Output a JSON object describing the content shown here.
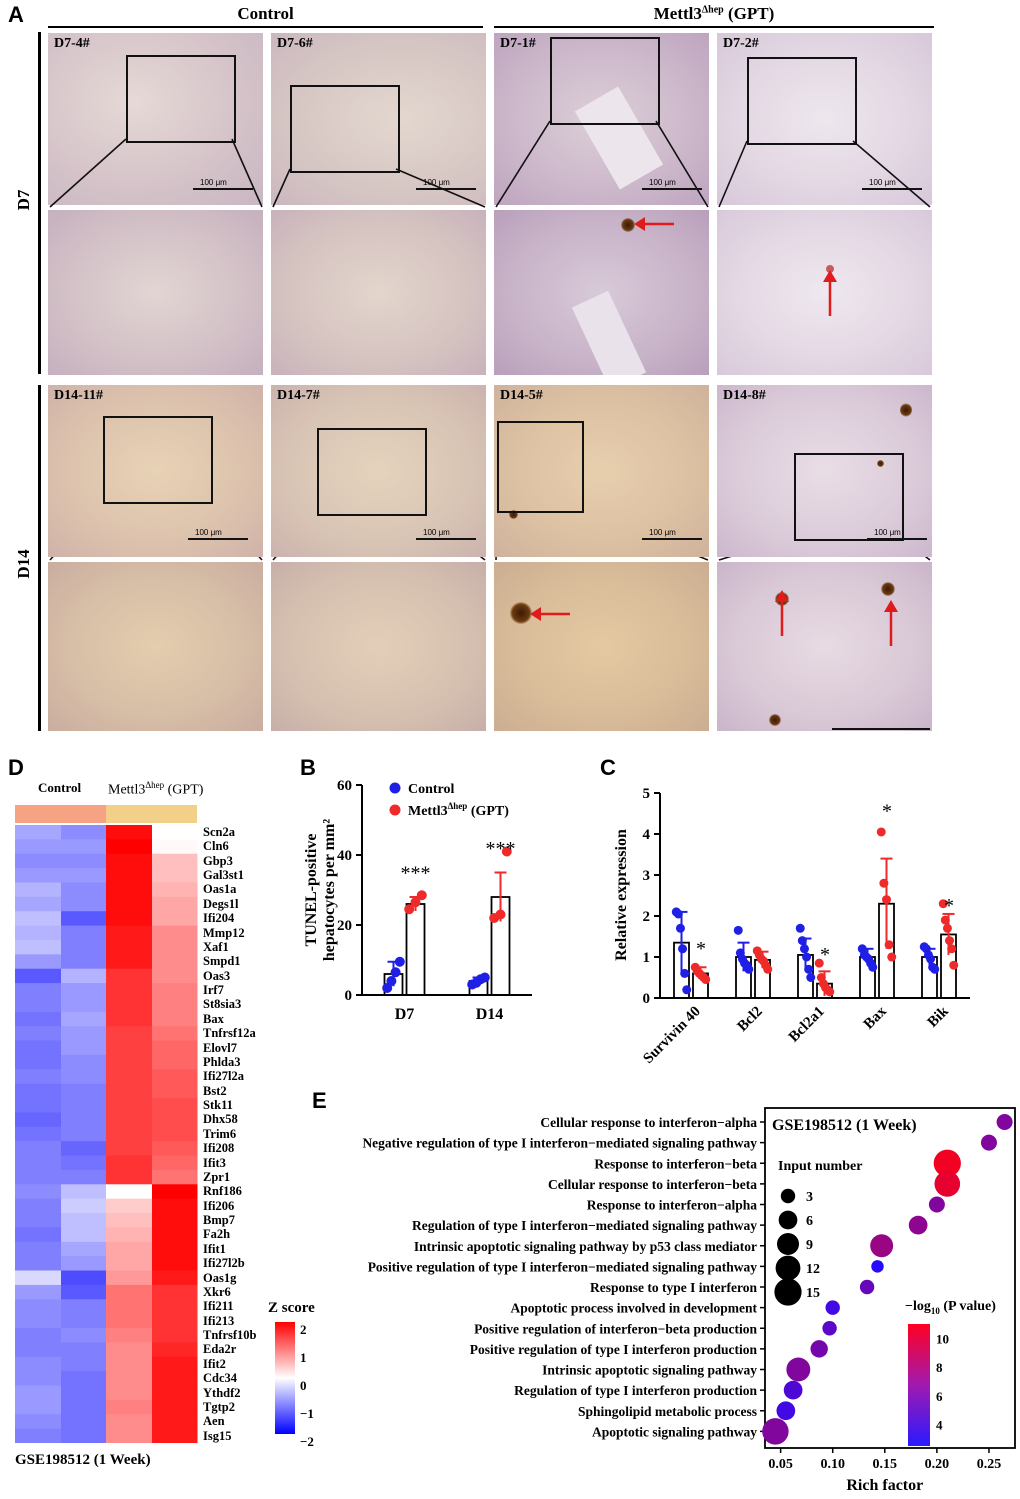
{
  "panel_a": {
    "letter": "A",
    "groups": [
      {
        "label": "Control"
      },
      {
        "label_main": "Mettl3",
        "label_sup": "Δhep",
        "label_tail": " (GPT)"
      }
    ],
    "rows": [
      {
        "label": "D7",
        "samples": [
          "D7-4#",
          "D7-6#",
          "D7-1#",
          "D7-2#"
        ]
      },
      {
        "label": "D14",
        "samples": [
          "D14-11#",
          "D14-7#",
          "D14-5#",
          "D14-8#"
        ]
      }
    ],
    "scale_label": "100 μm"
  },
  "panel_b": {
    "letter": "B",
    "ylabel_line1": "TUNEL-positive",
    "ylabel_line2": "hepatocytes per mm²",
    "legend": [
      {
        "name": "Control",
        "color": "#1f1fe6"
      },
      {
        "name_main": "Mettl3",
        "name_sup": "Δhep",
        "name_tail": " (GPT)",
        "color": "#ee2a2a"
      }
    ],
    "sig": [
      "***",
      "***"
    ]
  },
  "panel_c": {
    "letter": "C",
    "ylabel": "Relative expression",
    "sig": [
      "*",
      "*",
      "*",
      "*"
    ]
  },
  "panel_d": {
    "letter": "D",
    "col_labels": {
      "control": "Control",
      "mettl3_main": "Mettl3",
      "mettl3_sup": "Δhep",
      "mettl3_tail": " (GPT)"
    },
    "genes": [
      "Scn2a",
      "Cln6",
      "Gbp3",
      "Gal3st1",
      "Oas1a",
      "Degs1l",
      "Ifi204",
      "Mmp12",
      "Xaf1",
      "Smpd1",
      "Oas3",
      "Irf7",
      "St8sia3",
      "Bax",
      "Tnfrsf12a",
      "Elovl7",
      "Phlda3",
      "Ifi27l2a",
      "Bst2",
      "Stk11",
      "Dhx58",
      "Trim6",
      "Ifi208",
      "Ifit3",
      "Zpr1",
      "Rnf186",
      "Ifi206",
      "Bmp7",
      "Fa2h",
      "Ifit1",
      "Ifi27l2b",
      "Oas1g",
      "Xkr6",
      "Ifi211",
      "Ifi213",
      "Tnfrsf10b",
      "Eda2r",
      "Ifit2",
      "Cdc34",
      "Ythdf2",
      "Tgtp2",
      "Aen",
      "Isg15"
    ],
    "zvalues": [
      [
        -0.7,
        -0.9,
        1.9,
        0.0
      ],
      [
        -0.8,
        -0.8,
        2.0,
        0.05
      ],
      [
        -0.9,
        -0.9,
        1.9,
        0.5
      ],
      [
        -0.8,
        -0.8,
        1.9,
        0.5
      ],
      [
        -0.6,
        -0.9,
        1.9,
        0.6
      ],
      [
        -0.7,
        -0.9,
        1.9,
        0.7
      ],
      [
        -0.5,
        -1.3,
        1.9,
        0.7
      ],
      [
        -0.6,
        -1.0,
        1.8,
        0.9
      ],
      [
        -0.5,
        -1.0,
        1.8,
        0.9
      ],
      [
        -0.8,
        -1.0,
        1.8,
        0.9
      ],
      [
        -1.3,
        -0.6,
        1.6,
        0.9
      ],
      [
        -1.0,
        -0.8,
        1.6,
        1.0
      ],
      [
        -1.0,
        -0.8,
        1.6,
        1.0
      ],
      [
        -1.1,
        -0.7,
        1.6,
        1.0
      ],
      [
        -1.0,
        -0.8,
        1.5,
        1.1
      ],
      [
        -1.1,
        -0.8,
        1.5,
        1.2
      ],
      [
        -1.1,
        -0.9,
        1.5,
        1.2
      ],
      [
        -1.0,
        -0.9,
        1.5,
        1.3
      ],
      [
        -1.1,
        -1.0,
        1.5,
        1.3
      ],
      [
        -1.1,
        -1.0,
        1.5,
        1.4
      ],
      [
        -1.2,
        -1.0,
        1.5,
        1.4
      ],
      [
        -1.1,
        -1.0,
        1.5,
        1.4
      ],
      [
        -1.0,
        -1.2,
        1.5,
        1.3
      ],
      [
        -1.0,
        -1.1,
        1.6,
        1.2
      ],
      [
        -1.0,
        -1.0,
        1.6,
        1.1
      ],
      [
        -0.9,
        -0.5,
        0.0,
        2.0
      ],
      [
        -1.0,
        -0.4,
        0.4,
        1.9
      ],
      [
        -1.0,
        -0.5,
        0.5,
        1.9
      ],
      [
        -1.1,
        -0.5,
        0.6,
        1.9
      ],
      [
        -1.0,
        -0.7,
        0.7,
        1.9
      ],
      [
        -1.0,
        -0.8,
        0.7,
        1.9
      ],
      [
        -0.3,
        -1.4,
        0.8,
        1.8
      ],
      [
        -0.8,
        -1.3,
        1.1,
        1.6
      ],
      [
        -0.9,
        -1.0,
        1.1,
        1.6
      ],
      [
        -0.9,
        -1.0,
        1.1,
        1.6
      ],
      [
        -1.0,
        -0.9,
        1.0,
        1.6
      ],
      [
        -1.0,
        -1.0,
        0.9,
        1.7
      ],
      [
        -0.9,
        -1.0,
        0.9,
        1.8
      ],
      [
        -0.9,
        -1.1,
        0.9,
        1.8
      ],
      [
        -0.8,
        -1.1,
        0.9,
        1.8
      ],
      [
        -0.8,
        -1.1,
        1.0,
        1.8
      ],
      [
        -0.9,
        -1.1,
        0.9,
        1.8
      ],
      [
        -1.0,
        -1.1,
        0.9,
        1.8
      ]
    ],
    "colorbar_title": "Z score",
    "colorbar_ticks": [
      "2",
      "1",
      "0",
      "−1",
      "−2"
    ],
    "footer": "GSE198512 (1 Week)"
  },
  "panel_e": {
    "letter": "E",
    "box_title": "GSE198512 (1 Week)",
    "size_legend_title": "Input number",
    "size_legend_values": [
      "3",
      "6",
      "9",
      "12",
      "15"
    ],
    "color_legend_title_main": "−log",
    "color_legend_title_sub": "10",
    "color_legend_title_tail": " (P value)",
    "color_legend_ticks": [
      "10",
      "8",
      "6",
      "4"
    ]
  },
  "chart_data": [
    {
      "type": "bar",
      "panel": "B",
      "categories": [
        "D7",
        "D14"
      ],
      "series": [
        {
          "name": "Control",
          "values": [
            6.0,
            4.0
          ],
          "err": [
            3.5,
            1.0
          ],
          "points": [
            [
              2.0,
              4.0,
              6.5,
              9.5
            ],
            [
              3.0,
              3.5,
              4.5,
              5.0
            ]
          ]
        },
        {
          "name": "Mettl3Δhep (GPT)",
          "values": [
            26.0,
            28.0
          ],
          "err": [
            2.0,
            7.0
          ],
          "points": [
            [
              24.5,
              26.5,
              28.5
            ],
            [
              22.0,
              23.0,
              41.0
            ]
          ]
        }
      ],
      "ylim": [
        0,
        60
      ],
      "yticks": [
        "0",
        "20",
        "40",
        "60"
      ],
      "ylabel": "TUNEL-positive hepatocytes per mm²"
    },
    {
      "type": "bar",
      "panel": "C",
      "categories": [
        "Survivin 40",
        "Bcl2",
        "Bcl2a1",
        "Bax",
        "Bik"
      ],
      "series": [
        {
          "name": "Control",
          "values": [
            1.35,
            1.0,
            1.05,
            1.0,
            1.0
          ],
          "err": [
            0.75,
            0.35,
            0.4,
            0.2,
            0.2
          ],
          "points": [
            [
              2.1,
              2.05,
              1.7,
              1.2,
              0.6,
              0.2
            ],
            [
              1.65,
              1.1,
              0.95,
              0.85,
              0.8,
              0.7
            ],
            [
              1.7,
              1.4,
              1.2,
              1.0,
              0.7,
              0.5
            ],
            [
              1.2,
              1.05,
              1.0,
              0.95,
              0.85,
              0.75
            ],
            [
              1.25,
              1.2,
              1.05,
              0.95,
              0.75,
              0.7
            ]
          ]
        },
        {
          "name": "Mettl3Δhep (GPT)",
          "values": [
            0.6,
            0.93,
            0.35,
            2.3,
            1.55
          ],
          "err": [
            0.15,
            0.2,
            0.3,
            1.1,
            0.5
          ],
          "points": [
            [
              0.75,
              0.65,
              0.6,
              0.55,
              0.5,
              0.45
            ],
            [
              1.15,
              1.05,
              0.95,
              0.9,
              0.8,
              0.7
            ],
            [
              0.85,
              0.5,
              0.35,
              0.25,
              0.2,
              0.15
            ],
            [
              4.05,
              2.8,
              2.4,
              1.3,
              1.0
            ],
            [
              2.3,
              1.9,
              1.7,
              1.4,
              1.2,
              0.8
            ]
          ]
        }
      ],
      "ylim": [
        0,
        5
      ],
      "yticks": [
        "0",
        "1",
        "2",
        "3",
        "4",
        "5"
      ],
      "ylabel": "Relative expression"
    },
    {
      "type": "scatter",
      "panel": "E",
      "categories": [
        "Cellular response to interferon−alpha",
        "Negative regulation of type I interferon−mediated signaling pathway",
        "Response to interferon−beta",
        "Cellular response to interferon−beta",
        "Response to interferon−alpha",
        "Regulation of type I interferon−mediated signaling pathway",
        "Intrinsic apoptotic signaling pathway by p53 class mediator",
        "Positive regulation of type I interferon−mediated signaling pathway",
        "Response to type I interferon",
        "Apoptotic process involved in development",
        "Positive regulation of interferon−beta production",
        "Positive regulation of type I interferon production",
        "Intrinsic apoptotic signaling pathway",
        "Regulation of type I interferon production",
        "Sphingolipid metabolic process",
        "Apoptotic signaling pathway"
      ],
      "rich_factor": [
        0.265,
        0.25,
        0.21,
        0.21,
        0.2,
        0.182,
        0.147,
        0.143,
        0.133,
        0.1,
        0.097,
        0.087,
        0.067,
        0.062,
        0.055,
        0.045
      ],
      "input_number": [
        4,
        4,
        15,
        13,
        4,
        6,
        10,
        2,
        3,
        3,
        3,
        5,
        11,
        6,
        6,
        14
      ],
      "neg_log10_p": [
        6.0,
        6.0,
        10.5,
        10.0,
        6.0,
        6.5,
        7.0,
        2.5,
        5.0,
        3.5,
        4.5,
        5.5,
        6.0,
        4.0,
        3.5,
        6.0
      ],
      "xlim": [
        0.035,
        0.275
      ],
      "xticks": [
        "0.05",
        "0.10",
        "0.15",
        "0.20",
        "0.25"
      ],
      "xlabel": "Rich factor"
    }
  ]
}
